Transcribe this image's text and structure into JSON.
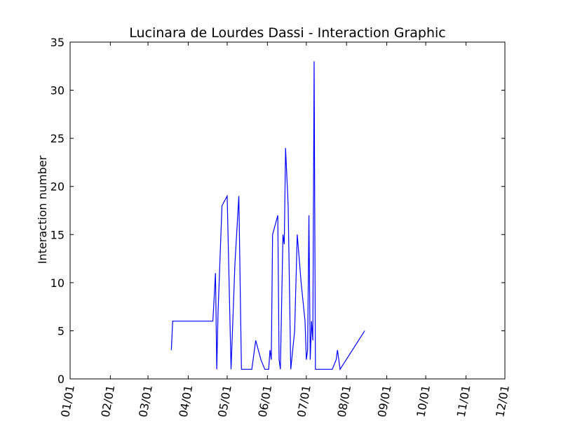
{
  "chart_data": {
    "type": "line",
    "title": "Lucinara de Lourdes Dassi - Interaction Graphic",
    "xlabel": "",
    "ylabel": "Interaction number",
    "ylim": [
      0,
      35
    ],
    "xlim": [
      "01/01",
      "12/01"
    ],
    "xticks": [
      "01/01",
      "02/01",
      "03/01",
      "04/01",
      "05/01",
      "06/01",
      "07/01",
      "08/01",
      "09/01",
      "10/01",
      "11/01",
      "12/01"
    ],
    "yticks": [
      "0",
      "5",
      "10",
      "15",
      "20",
      "25",
      "30",
      "35"
    ],
    "grid": false,
    "line_color": "#0000ff",
    "series": [
      {
        "x": [
          "03/19",
          "03/20",
          "04/20",
          "04/22",
          "04/23",
          "04/24",
          "04/27",
          "05/01",
          "05/04",
          "05/07",
          "05/10",
          "05/12",
          "05/13",
          "05/20",
          "05/23",
          "05/27",
          "05/30",
          "06/02",
          "06/03",
          "06/04",
          "06/05",
          "06/09",
          "06/10",
          "06/11",
          "06/13",
          "06/14",
          "06/15",
          "06/17",
          "06/19",
          "06/22",
          "06/24",
          "06/27",
          "06/30",
          "07/01",
          "07/02",
          "07/03",
          "07/04",
          "07/05",
          "07/06",
          "07/07",
          "07/08",
          "07/21",
          "07/24",
          "07/25",
          "07/27",
          "08/15"
        ],
        "y": [
          3,
          6,
          6,
          11,
          1,
          7,
          18,
          19,
          1,
          12,
          19,
          1,
          1,
          1,
          4,
          2,
          1,
          1,
          3,
          2,
          15,
          17,
          2,
          1,
          15,
          14,
          24,
          18,
          1,
          5,
          15,
          10,
          6,
          2,
          3,
          17,
          2,
          6,
          4,
          33,
          1,
          1,
          2,
          3,
          1,
          5
        ]
      }
    ]
  }
}
